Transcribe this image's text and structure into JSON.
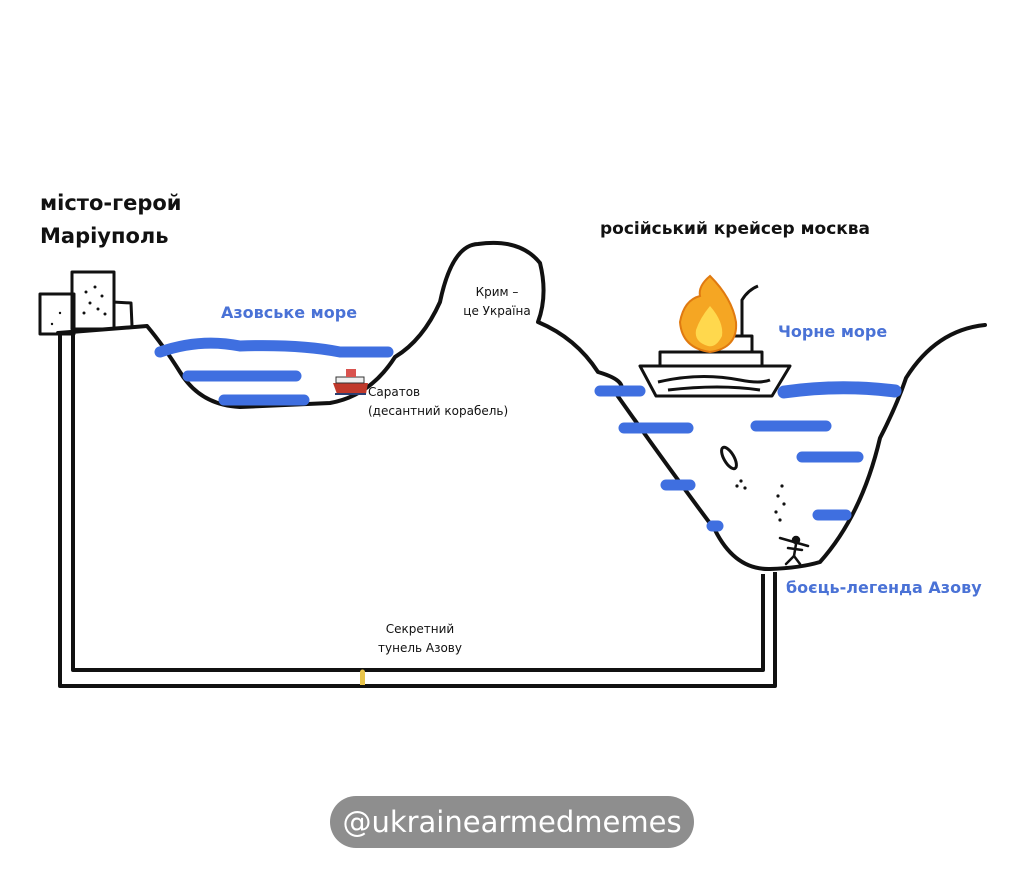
{
  "labels": {
    "city_line1": "місто-герой",
    "city_line2": "Маріуполь",
    "azov_sea": "Азовське море",
    "crimea_line1": "Крим –",
    "crimea_line2": "це Україна",
    "saratov_line1": "Саратов",
    "saratov_line2": "(десантний корабель)",
    "cruiser": "російський крейсер москва",
    "black_sea": "Чорне море",
    "fighter": "боєць-легенда Азову",
    "tunnel_line1": "Секретний",
    "tunnel_line2": "тунель Азову"
  },
  "watermark": {
    "handle": "@ukrainearmedmemes"
  },
  "colors": {
    "ink": "#111111",
    "water": "#3f6fe0",
    "label_blue": "#4a72d6",
    "watermark_bg": "#8e8e8e",
    "fire_outer": "#f5a623",
    "fire_inner": "#ffd84d"
  },
  "icons": [
    "fire-icon",
    "ship-icon",
    "diver-icon"
  ]
}
